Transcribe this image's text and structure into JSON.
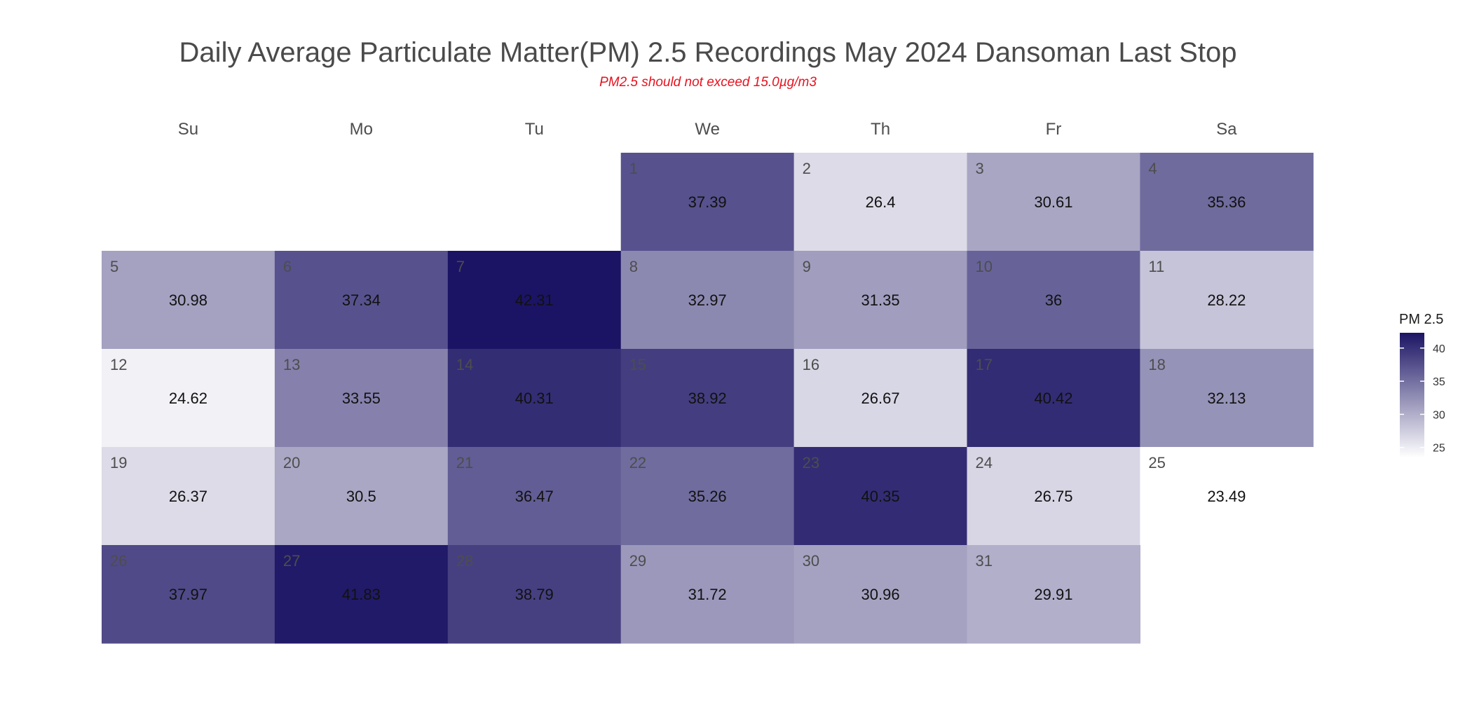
{
  "chart_data": {
    "type": "heatmap",
    "title": "Daily Average Particulate Matter(PM) 2.5 Recordings May 2024 Dansoman Last Stop",
    "subtitle": "PM2.5 should not exceed 15.0µg/m3",
    "weekdays": [
      "Su",
      "Mo",
      "Tu",
      "We",
      "Th",
      "Fr",
      "Sa"
    ],
    "first_weekday_index": 3,
    "days": [
      1,
      2,
      3,
      4,
      5,
      6,
      7,
      8,
      9,
      10,
      11,
      12,
      13,
      14,
      15,
      16,
      17,
      18,
      19,
      20,
      21,
      22,
      23,
      24,
      25,
      26,
      27,
      28,
      29,
      30,
      31
    ],
    "values": [
      37.39,
      26.4,
      30.61,
      35.36,
      30.98,
      37.34,
      42.31,
      32.97,
      31.35,
      36,
      28.22,
      24.62,
      33.55,
      40.31,
      38.92,
      26.67,
      40.42,
      32.13,
      26.37,
      30.5,
      36.47,
      35.26,
      40.35,
      26.75,
      23.49,
      37.97,
      41.83,
      38.79,
      31.72,
      30.96,
      29.91
    ],
    "value_labels": [
      "37.39",
      "26.4",
      "30.61",
      "35.36",
      "30.98",
      "37.34",
      "42.31",
      "32.97",
      "31.35",
      "36",
      "28.22",
      "24.62",
      "33.55",
      "40.31",
      "38.92",
      "26.67",
      "40.42",
      "32.13",
      "26.37",
      "30.5",
      "36.47",
      "35.26",
      "40.35",
      "26.75",
      "23.49",
      "37.97",
      "41.83",
      "38.79",
      "31.72",
      "30.96",
      "29.91"
    ],
    "legend": {
      "title": "PM 2.5",
      "ticks": [
        25,
        30,
        35,
        40
      ],
      "tick_labels": [
        "25",
        "30",
        "35",
        "40"
      ],
      "range": [
        23.49,
        42.31
      ],
      "low_color": "#ffffff",
      "high_color": "#1b1464",
      "placement": "right"
    }
  }
}
